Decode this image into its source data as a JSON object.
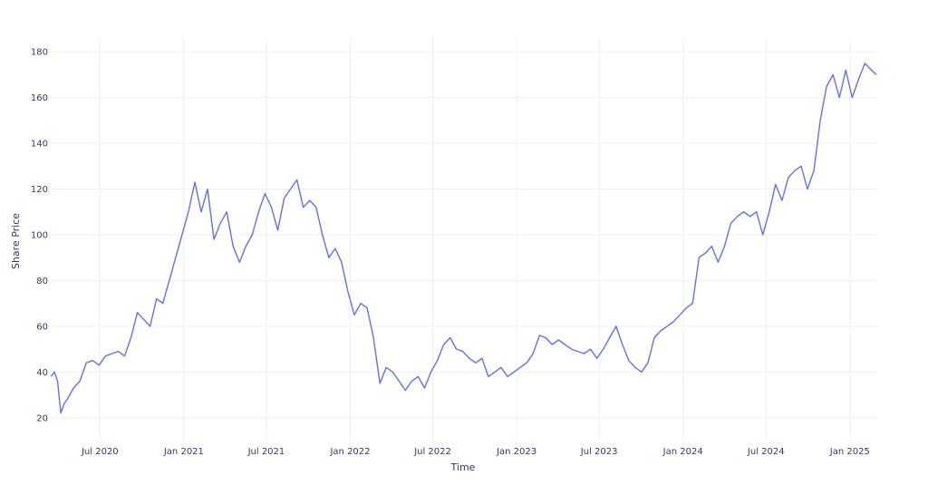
{
  "chart_data": {
    "type": "line",
    "xlabel": "Time",
    "ylabel": "Share Price",
    "x_range": [
      "2020-03-15",
      "2025-03-02"
    ],
    "ylim": [
      10,
      186
    ],
    "grid": true,
    "legend": "none",
    "x_ticks": [
      {
        "date": "2020-07-01",
        "label": "Jul 2020"
      },
      {
        "date": "2021-01-01",
        "label": "Jan 2021"
      },
      {
        "date": "2021-07-01",
        "label": "Jul 2021"
      },
      {
        "date": "2022-01-01",
        "label": "Jan 2022"
      },
      {
        "date": "2022-07-01",
        "label": "Jul 2022"
      },
      {
        "date": "2023-01-01",
        "label": "Jan 2023"
      },
      {
        "date": "2023-07-01",
        "label": "Jul 2023"
      },
      {
        "date": "2024-01-01",
        "label": "Jan 2024"
      },
      {
        "date": "2024-07-01",
        "label": "Jul 2024"
      },
      {
        "date": "2025-01-01",
        "label": "Jan 2025"
      }
    ],
    "y_ticks": [
      20,
      40,
      60,
      80,
      100,
      120,
      140,
      160,
      180
    ],
    "series": [
      {
        "color": "#636efa",
        "points": [
          [
            "2020-03-16",
            38
          ],
          [
            "2020-03-23",
            40
          ],
          [
            "2020-03-30",
            36
          ],
          [
            "2020-04-06",
            22
          ],
          [
            "2020-04-13",
            26
          ],
          [
            "2020-04-20",
            28
          ],
          [
            "2020-05-04",
            33
          ],
          [
            "2020-05-18",
            36
          ],
          [
            "2020-06-01",
            44
          ],
          [
            "2020-06-15",
            45
          ],
          [
            "2020-06-29",
            43
          ],
          [
            "2020-07-13",
            47
          ],
          [
            "2020-07-27",
            48
          ],
          [
            "2020-08-10",
            49
          ],
          [
            "2020-08-24",
            47
          ],
          [
            "2020-09-07",
            55
          ],
          [
            "2020-09-21",
            66
          ],
          [
            "2020-10-05",
            63
          ],
          [
            "2020-10-19",
            60
          ],
          [
            "2020-11-02",
            72
          ],
          [
            "2020-11-16",
            70
          ],
          [
            "2020-11-30",
            80
          ],
          [
            "2020-12-14",
            90
          ],
          [
            "2020-12-28",
            100
          ],
          [
            "2021-01-11",
            110
          ],
          [
            "2021-01-25",
            123
          ],
          [
            "2021-02-08",
            110
          ],
          [
            "2021-02-22",
            120
          ],
          [
            "2021-03-08",
            98
          ],
          [
            "2021-03-22",
            105
          ],
          [
            "2021-04-05",
            110
          ],
          [
            "2021-04-19",
            95
          ],
          [
            "2021-05-03",
            88
          ],
          [
            "2021-05-17",
            95
          ],
          [
            "2021-05-31",
            100
          ],
          [
            "2021-06-14",
            110
          ],
          [
            "2021-06-28",
            118
          ],
          [
            "2021-07-12",
            112
          ],
          [
            "2021-07-26",
            102
          ],
          [
            "2021-08-09",
            116
          ],
          [
            "2021-08-23",
            120
          ],
          [
            "2021-09-06",
            124
          ],
          [
            "2021-09-20",
            112
          ],
          [
            "2021-10-04",
            115
          ],
          [
            "2021-10-18",
            112
          ],
          [
            "2021-11-01",
            100
          ],
          [
            "2021-11-15",
            90
          ],
          [
            "2021-11-29",
            94
          ],
          [
            "2021-12-13",
            88
          ],
          [
            "2021-12-27",
            75
          ],
          [
            "2022-01-10",
            65
          ],
          [
            "2022-01-24",
            70
          ],
          [
            "2022-02-07",
            68
          ],
          [
            "2022-02-21",
            55
          ],
          [
            "2022-03-07",
            35
          ],
          [
            "2022-03-21",
            42
          ],
          [
            "2022-04-04",
            40
          ],
          [
            "2022-04-18",
            36
          ],
          [
            "2022-05-02",
            32
          ],
          [
            "2022-05-16",
            36
          ],
          [
            "2022-05-30",
            38
          ],
          [
            "2022-06-13",
            33
          ],
          [
            "2022-06-27",
            40
          ],
          [
            "2022-07-11",
            45
          ],
          [
            "2022-07-25",
            52
          ],
          [
            "2022-08-08",
            55
          ],
          [
            "2022-08-22",
            50
          ],
          [
            "2022-09-05",
            49
          ],
          [
            "2022-09-19",
            46
          ],
          [
            "2022-10-03",
            44
          ],
          [
            "2022-10-17",
            46
          ],
          [
            "2022-10-31",
            38
          ],
          [
            "2022-11-14",
            40
          ],
          [
            "2022-11-28",
            42
          ],
          [
            "2022-12-12",
            38
          ],
          [
            "2022-12-26",
            40
          ],
          [
            "2023-01-09",
            42
          ],
          [
            "2023-01-23",
            44
          ],
          [
            "2023-02-06",
            48
          ],
          [
            "2023-02-20",
            56
          ],
          [
            "2023-03-06",
            55
          ],
          [
            "2023-03-20",
            52
          ],
          [
            "2023-04-03",
            54
          ],
          [
            "2023-04-17",
            52
          ],
          [
            "2023-05-01",
            50
          ],
          [
            "2023-05-15",
            49
          ],
          [
            "2023-05-29",
            48
          ],
          [
            "2023-06-12",
            50
          ],
          [
            "2023-06-26",
            46
          ],
          [
            "2023-07-10",
            50
          ],
          [
            "2023-07-24",
            55
          ],
          [
            "2023-08-07",
            60
          ],
          [
            "2023-08-21",
            52
          ],
          [
            "2023-09-04",
            45
          ],
          [
            "2023-09-18",
            42
          ],
          [
            "2023-10-02",
            40
          ],
          [
            "2023-10-16",
            44
          ],
          [
            "2023-10-30",
            55
          ],
          [
            "2023-11-13",
            58
          ],
          [
            "2023-11-27",
            60
          ],
          [
            "2023-12-11",
            62
          ],
          [
            "2023-12-25",
            65
          ],
          [
            "2024-01-08",
            68
          ],
          [
            "2024-01-22",
            70
          ],
          [
            "2024-02-05",
            90
          ],
          [
            "2024-02-19",
            92
          ],
          [
            "2024-03-04",
            95
          ],
          [
            "2024-03-18",
            88
          ],
          [
            "2024-04-01",
            95
          ],
          [
            "2024-04-15",
            105
          ],
          [
            "2024-04-29",
            108
          ],
          [
            "2024-05-13",
            110
          ],
          [
            "2024-05-27",
            108
          ],
          [
            "2024-06-10",
            110
          ],
          [
            "2024-06-24",
            100
          ],
          [
            "2024-07-08",
            110
          ],
          [
            "2024-07-22",
            122
          ],
          [
            "2024-08-05",
            115
          ],
          [
            "2024-08-19",
            125
          ],
          [
            "2024-09-02",
            128
          ],
          [
            "2024-09-16",
            130
          ],
          [
            "2024-09-30",
            120
          ],
          [
            "2024-10-14",
            128
          ],
          [
            "2024-10-28",
            150
          ],
          [
            "2024-11-11",
            165
          ],
          [
            "2024-11-25",
            170
          ],
          [
            "2024-12-09",
            160
          ],
          [
            "2024-12-23",
            172
          ],
          [
            "2025-01-06",
            160
          ],
          [
            "2025-01-20",
            168
          ],
          [
            "2025-02-03",
            175
          ],
          [
            "2025-02-17",
            172
          ],
          [
            "2025-02-28",
            170
          ]
        ]
      }
    ]
  }
}
